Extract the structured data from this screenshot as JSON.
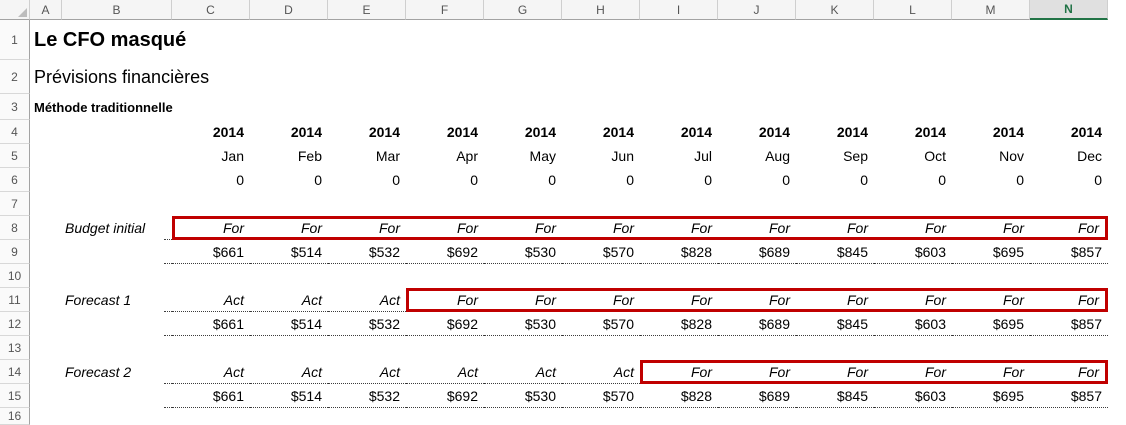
{
  "sheet": {
    "title": "Le CFO masqué",
    "subtitle": "Prévisions financières",
    "section_label": "Méthode traditionnelle",
    "column_headers": [
      "A",
      "B",
      "C",
      "D",
      "E",
      "F",
      "G",
      "H",
      "I",
      "J",
      "K",
      "L",
      "M",
      "N"
    ],
    "selected_column": "N",
    "row_numbers": [
      "1",
      "2",
      "3",
      "4",
      "5",
      "6",
      "7",
      "8",
      "9",
      "10",
      "11",
      "12",
      "13",
      "14",
      "15",
      "16"
    ],
    "year_row": [
      "2014",
      "2014",
      "2014",
      "2014",
      "2014",
      "2014",
      "2014",
      "2014",
      "2014",
      "2014",
      "2014",
      "2014"
    ],
    "month_row": [
      "Jan",
      "Feb",
      "Mar",
      "Apr",
      "May",
      "Jun",
      "Jul",
      "Aug",
      "Sep",
      "Oct",
      "Nov",
      "Dec"
    ],
    "zero_row": [
      "0",
      "0",
      "0",
      "0",
      "0",
      "0",
      "0",
      "0",
      "0",
      "0",
      "0",
      "0"
    ],
    "blocks": [
      {
        "label": "Budget initial",
        "statuses": [
          "For",
          "For",
          "For",
          "For",
          "For",
          "For",
          "For",
          "For",
          "For",
          "For",
          "For",
          "For"
        ],
        "values": [
          "$661",
          "$514",
          "$532",
          "$692",
          "$530",
          "$570",
          "$828",
          "$689",
          "$845",
          "$603",
          "$695",
          "$857"
        ],
        "highlight_start_index": 0
      },
      {
        "label": "Forecast 1",
        "statuses": [
          "Act",
          "Act",
          "Act",
          "For",
          "For",
          "For",
          "For",
          "For",
          "For",
          "For",
          "For",
          "For"
        ],
        "values": [
          "$661",
          "$514",
          "$532",
          "$692",
          "$530",
          "$570",
          "$828",
          "$689",
          "$845",
          "$603",
          "$695",
          "$857"
        ],
        "highlight_start_index": 3
      },
      {
        "label": "Forecast 2",
        "statuses": [
          "Act",
          "Act",
          "Act",
          "Act",
          "Act",
          "Act",
          "For",
          "For",
          "For",
          "For",
          "For",
          "For"
        ],
        "values": [
          "$661",
          "$514",
          "$532",
          "$692",
          "$530",
          "$570",
          "$828",
          "$689",
          "$845",
          "$603",
          "$695",
          "$857"
        ],
        "highlight_start_index": 6
      }
    ],
    "colors": {
      "highlight_border_red": "#C00000",
      "selected_header_green": "#217346"
    }
  }
}
